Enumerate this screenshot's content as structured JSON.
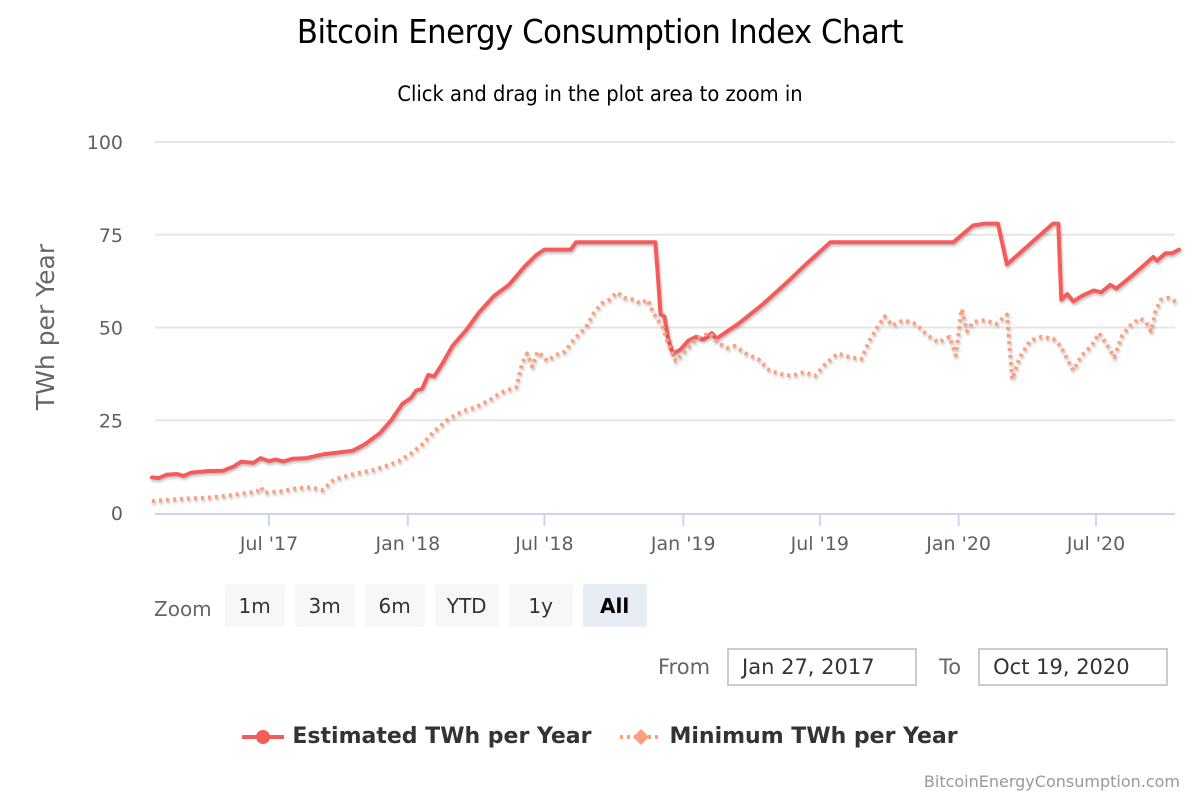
{
  "chart_data": {
    "type": "line",
    "title": "Bitcoin Energy Consumption Index Chart",
    "subtitle": "Click and drag in the plot area to zoom in",
    "xlabel": "",
    "ylabel": "TWh per Year",
    "ylim": [
      0,
      100
    ],
    "yticks": [
      0,
      25,
      50,
      75,
      100
    ],
    "xlim": [
      "2017-01-27",
      "2020-10-19"
    ],
    "xticks": [
      {
        "date": "2017-07-01",
        "label": "Jul '17"
      },
      {
        "date": "2018-01-01",
        "label": "Jan '18"
      },
      {
        "date": "2018-07-01",
        "label": "Jul '18"
      },
      {
        "date": "2019-01-01",
        "label": "Jan '19"
      },
      {
        "date": "2019-07-01",
        "label": "Jul '19"
      },
      {
        "date": "2020-01-01",
        "label": "Jan '20"
      },
      {
        "date": "2020-07-01",
        "label": "Jul '20"
      }
    ],
    "grid": true,
    "legend_position": "bottom-center",
    "series": [
      {
        "name": "Estimated TWh per Year",
        "color": "#f45b5b",
        "style": "solid",
        "points": [
          [
            "2017-01-27",
            9.6
          ],
          [
            "2017-02-05",
            9.4
          ],
          [
            "2017-02-15",
            10.3
          ],
          [
            "2017-03-01",
            10.5
          ],
          [
            "2017-03-10",
            10.0
          ],
          [
            "2017-03-20",
            10.9
          ],
          [
            "2017-04-10",
            11.3
          ],
          [
            "2017-05-01",
            11.4
          ],
          [
            "2017-05-15",
            12.5
          ],
          [
            "2017-05-25",
            13.8
          ],
          [
            "2017-06-10",
            13.5
          ],
          [
            "2017-06-20",
            14.8
          ],
          [
            "2017-07-01",
            14.0
          ],
          [
            "2017-07-10",
            14.4
          ],
          [
            "2017-07-20",
            13.9
          ],
          [
            "2017-08-01",
            14.6
          ],
          [
            "2017-08-20",
            14.8
          ],
          [
            "2017-09-10",
            15.8
          ],
          [
            "2017-10-01",
            16.3
          ],
          [
            "2017-10-20",
            16.8
          ],
          [
            "2017-11-05",
            18.5
          ],
          [
            "2017-11-25",
            21.5
          ],
          [
            "2017-12-10",
            25.0
          ],
          [
            "2017-12-25",
            29.5
          ],
          [
            "2018-01-05",
            31.0
          ],
          [
            "2018-01-12",
            33.0
          ],
          [
            "2018-01-20",
            33.5
          ],
          [
            "2018-01-28",
            37.2
          ],
          [
            "2018-02-05",
            36.8
          ],
          [
            "2018-02-15",
            40.0
          ],
          [
            "2018-03-01",
            45.0
          ],
          [
            "2018-03-20",
            49.5
          ],
          [
            "2018-04-05",
            54.0
          ],
          [
            "2018-04-25",
            58.5
          ],
          [
            "2018-05-15",
            61.5
          ],
          [
            "2018-06-05",
            66.5
          ],
          [
            "2018-06-20",
            69.5
          ],
          [
            "2018-07-01",
            71.0
          ],
          [
            "2018-07-15",
            71.0
          ],
          [
            "2018-08-05",
            71.0
          ],
          [
            "2018-08-12",
            73.0
          ],
          [
            "2018-09-15",
            73.0
          ],
          [
            "2018-10-20",
            73.0
          ],
          [
            "2018-11-25",
            73.0
          ],
          [
            "2018-11-28",
            65.0
          ],
          [
            "2018-12-02",
            53.5
          ],
          [
            "2018-12-07",
            53.0
          ],
          [
            "2018-12-12",
            47.0
          ],
          [
            "2018-12-18",
            43.0
          ],
          [
            "2018-12-28",
            44.0
          ],
          [
            "2019-01-08",
            46.5
          ],
          [
            "2019-01-18",
            47.5
          ],
          [
            "2019-01-28",
            46.8
          ],
          [
            "2019-02-08",
            48.5
          ],
          [
            "2019-02-14",
            47.0
          ],
          [
            "2019-03-15",
            51.0
          ],
          [
            "2019-04-15",
            56.0
          ],
          [
            "2019-05-15",
            61.5
          ],
          [
            "2019-06-15",
            67.5
          ],
          [
            "2019-07-15",
            73.0
          ],
          [
            "2019-09-01",
            73.0
          ],
          [
            "2019-11-01",
            73.0
          ],
          [
            "2019-12-25",
            73.0
          ],
          [
            "2020-01-20",
            77.5
          ],
          [
            "2020-02-05",
            78.0
          ],
          [
            "2020-02-22",
            78.0
          ],
          [
            "2020-03-05",
            67.0
          ],
          [
            "2020-05-05",
            78.0
          ],
          [
            "2020-05-12",
            78.0
          ],
          [
            "2020-05-16",
            57.5
          ],
          [
            "2020-05-24",
            59.0
          ],
          [
            "2020-06-01",
            57.0
          ],
          [
            "2020-06-12",
            58.5
          ],
          [
            "2020-06-28",
            60.0
          ],
          [
            "2020-07-08",
            59.5
          ],
          [
            "2020-07-20",
            61.5
          ],
          [
            "2020-07-28",
            60.5
          ],
          [
            "2020-08-15",
            63.5
          ],
          [
            "2020-09-01",
            66.5
          ],
          [
            "2020-09-15",
            69.0
          ],
          [
            "2020-09-20",
            68.0
          ],
          [
            "2020-10-01",
            70.0
          ],
          [
            "2020-10-10",
            70.0
          ],
          [
            "2020-10-19",
            71.0
          ]
        ]
      },
      {
        "name": "Minimum TWh per Year",
        "color": "#f7a35c",
        "style": "dotted",
        "points": [
          [
            "2017-01-27",
            3.2
          ],
          [
            "2017-02-20",
            3.6
          ],
          [
            "2017-03-15",
            3.9
          ],
          [
            "2017-04-10",
            4.1
          ],
          [
            "2017-05-05",
            4.6
          ],
          [
            "2017-05-25",
            5.2
          ],
          [
            "2017-06-15",
            5.8
          ],
          [
            "2017-06-20",
            7.0
          ],
          [
            "2017-06-25",
            5.5
          ],
          [
            "2017-07-15",
            5.8
          ],
          [
            "2017-08-05",
            6.6
          ],
          [
            "2017-08-25",
            6.9
          ],
          [
            "2017-09-10",
            6.2
          ],
          [
            "2017-09-25",
            9.0
          ],
          [
            "2017-10-15",
            10.2
          ],
          [
            "2017-11-01",
            11.0
          ],
          [
            "2017-11-15",
            11.5
          ],
          [
            "2017-12-01",
            12.5
          ],
          [
            "2017-12-20",
            14.0
          ],
          [
            "2018-01-05",
            16.0
          ],
          [
            "2018-01-20",
            18.5
          ],
          [
            "2018-02-05",
            22.0
          ],
          [
            "2018-02-25",
            25.5
          ],
          [
            "2018-03-15",
            27.5
          ],
          [
            "2018-04-01",
            28.5
          ],
          [
            "2018-04-20",
            30.5
          ],
          [
            "2018-05-05",
            32.5
          ],
          [
            "2018-05-25",
            34.0
          ],
          [
            "2018-06-01",
            40.0
          ],
          [
            "2018-06-08",
            43.0
          ],
          [
            "2018-06-15",
            39.5
          ],
          [
            "2018-06-22",
            43.5
          ],
          [
            "2018-07-05",
            41.0
          ],
          [
            "2018-07-15",
            42.5
          ],
          [
            "2018-07-28",
            43.5
          ],
          [
            "2018-08-10",
            47.0
          ],
          [
            "2018-08-25",
            50.0
          ],
          [
            "2018-09-05",
            54.0
          ],
          [
            "2018-09-15",
            56.5
          ],
          [
            "2018-09-25",
            57.5
          ],
          [
            "2018-10-05",
            59.5
          ],
          [
            "2018-10-15",
            58.0
          ],
          [
            "2018-10-28",
            57.5
          ],
          [
            "2018-11-05",
            56.5
          ],
          [
            "2018-11-15",
            57.5
          ],
          [
            "2018-11-22",
            54.0
          ],
          [
            "2018-12-05",
            50.0
          ],
          [
            "2018-12-12",
            45.5
          ],
          [
            "2018-12-22",
            41.0
          ],
          [
            "2019-01-05",
            44.0
          ],
          [
            "2019-01-18",
            47.0
          ],
          [
            "2019-02-05",
            48.5
          ],
          [
            "2019-02-15",
            46.0
          ],
          [
            "2019-02-28",
            44.5
          ],
          [
            "2019-03-10",
            45.0
          ],
          [
            "2019-03-25",
            43.0
          ],
          [
            "2019-04-10",
            41.5
          ],
          [
            "2019-04-25",
            38.5
          ],
          [
            "2019-05-10",
            37.5
          ],
          [
            "2019-05-25",
            37.0
          ],
          [
            "2019-06-10",
            38.0
          ],
          [
            "2019-06-25",
            37.0
          ],
          [
            "2019-07-10",
            40.5
          ],
          [
            "2019-07-25",
            43.0
          ],
          [
            "2019-08-10",
            42.0
          ],
          [
            "2019-08-25",
            41.5
          ],
          [
            "2019-09-05",
            46.5
          ],
          [
            "2019-09-15",
            50.0
          ],
          [
            "2019-09-25",
            53.0
          ],
          [
            "2019-10-05",
            50.5
          ],
          [
            "2019-10-20",
            52.0
          ],
          [
            "2019-11-05",
            51.0
          ],
          [
            "2019-11-20",
            48.0
          ],
          [
            "2019-12-05",
            46.0
          ],
          [
            "2019-12-20",
            47.5
          ],
          [
            "2019-12-28",
            42.5
          ],
          [
            "2020-01-05",
            55.0
          ],
          [
            "2020-01-12",
            49.0
          ],
          [
            "2020-01-20",
            51.5
          ],
          [
            "2020-02-05",
            52.0
          ],
          [
            "2020-02-20",
            51.0
          ],
          [
            "2020-03-05",
            53.5
          ],
          [
            "2020-03-12",
            36.0
          ],
          [
            "2020-03-22",
            42.0
          ],
          [
            "2020-04-05",
            46.5
          ],
          [
            "2020-04-20",
            47.5
          ],
          [
            "2020-05-05",
            47.0
          ],
          [
            "2020-05-15",
            45.0
          ],
          [
            "2020-05-25",
            41.0
          ],
          [
            "2020-06-01",
            38.5
          ],
          [
            "2020-06-12",
            42.5
          ],
          [
            "2020-06-25",
            45.0
          ],
          [
            "2020-07-05",
            48.5
          ],
          [
            "2020-07-15",
            45.5
          ],
          [
            "2020-07-25",
            42.0
          ],
          [
            "2020-08-05",
            48.0
          ],
          [
            "2020-08-15",
            50.5
          ],
          [
            "2020-08-28",
            52.5
          ],
          [
            "2020-09-05",
            51.5
          ],
          [
            "2020-09-12",
            49.0
          ],
          [
            "2020-09-18",
            54.5
          ],
          [
            "2020-09-25",
            57.5
          ],
          [
            "2020-10-05",
            58.0
          ],
          [
            "2020-10-19",
            56.5
          ]
        ]
      }
    ]
  },
  "range_selector": {
    "zoom_label": "Zoom",
    "buttons": [
      {
        "label": "1m",
        "active": false
      },
      {
        "label": "3m",
        "active": false
      },
      {
        "label": "6m",
        "active": false
      },
      {
        "label": "YTD",
        "active": false
      },
      {
        "label": "1y",
        "active": false
      },
      {
        "label": "All",
        "active": true
      }
    ],
    "from_label": "From",
    "from_value": "Jan 27, 2017",
    "to_label": "To",
    "to_value": "Oct 19, 2020"
  },
  "credits": "BitcoinEnergyConsumption.com",
  "colors": {
    "estimated": "#f45b5b",
    "minimum": "#f7a35c",
    "minimum_marker": "#fa9f7f",
    "grid": "#e6e6e6",
    "axis": "#ccd6eb",
    "active_button": "#e6ebf5"
  }
}
